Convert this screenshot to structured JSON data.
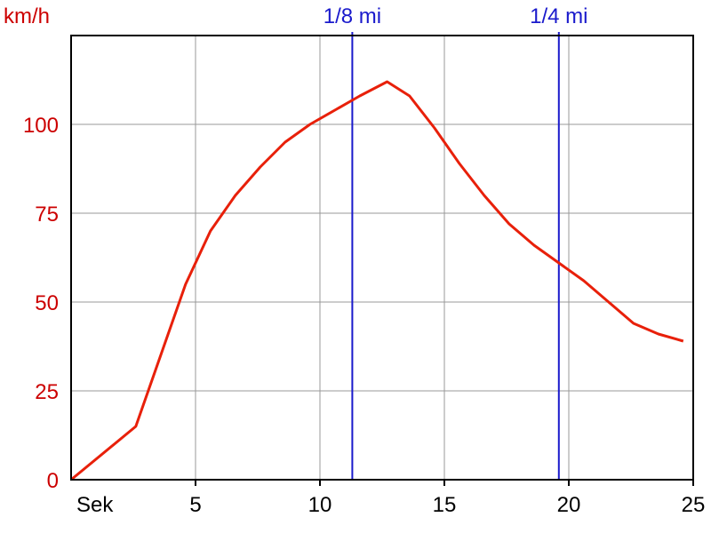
{
  "chart_data": {
    "type": "line",
    "ylabel": "km/h",
    "xlabel": "Sek",
    "xlim": [
      0,
      25
    ],
    "ylim": [
      0,
      125
    ],
    "x_ticks": [
      5,
      10,
      15,
      20,
      25
    ],
    "y_ticks": [
      0,
      25,
      50,
      75,
      100
    ],
    "grid": true,
    "series": [
      {
        "color": "#e8200a",
        "points": [
          [
            0,
            0
          ],
          [
            2.6,
            15
          ],
          [
            3.6,
            35
          ],
          [
            4.6,
            55
          ],
          [
            5.6,
            70
          ],
          [
            6.6,
            80
          ],
          [
            7.6,
            88
          ],
          [
            8.6,
            95
          ],
          [
            9.6,
            100
          ],
          [
            10.6,
            104
          ],
          [
            11.6,
            108
          ],
          [
            12.7,
            112
          ],
          [
            13.6,
            108
          ],
          [
            14.6,
            99
          ],
          [
            15.6,
            89
          ],
          [
            16.6,
            80
          ],
          [
            17.6,
            72
          ],
          [
            18.6,
            66
          ],
          [
            19.6,
            61
          ],
          [
            20.6,
            56
          ],
          [
            21.6,
            50
          ],
          [
            22.6,
            44
          ],
          [
            23.6,
            41
          ],
          [
            24.6,
            39
          ]
        ]
      }
    ],
    "markers": [
      {
        "label": "1/8 mi",
        "x": 11.3,
        "color": "#1a1acc"
      },
      {
        "label": "1/4 mi",
        "x": 19.6,
        "color": "#1a1acc"
      }
    ],
    "colors": {
      "grid": "#999999",
      "axis": "#000000",
      "y_ticks": "#cc0000",
      "x_ticks": "#000000"
    }
  }
}
